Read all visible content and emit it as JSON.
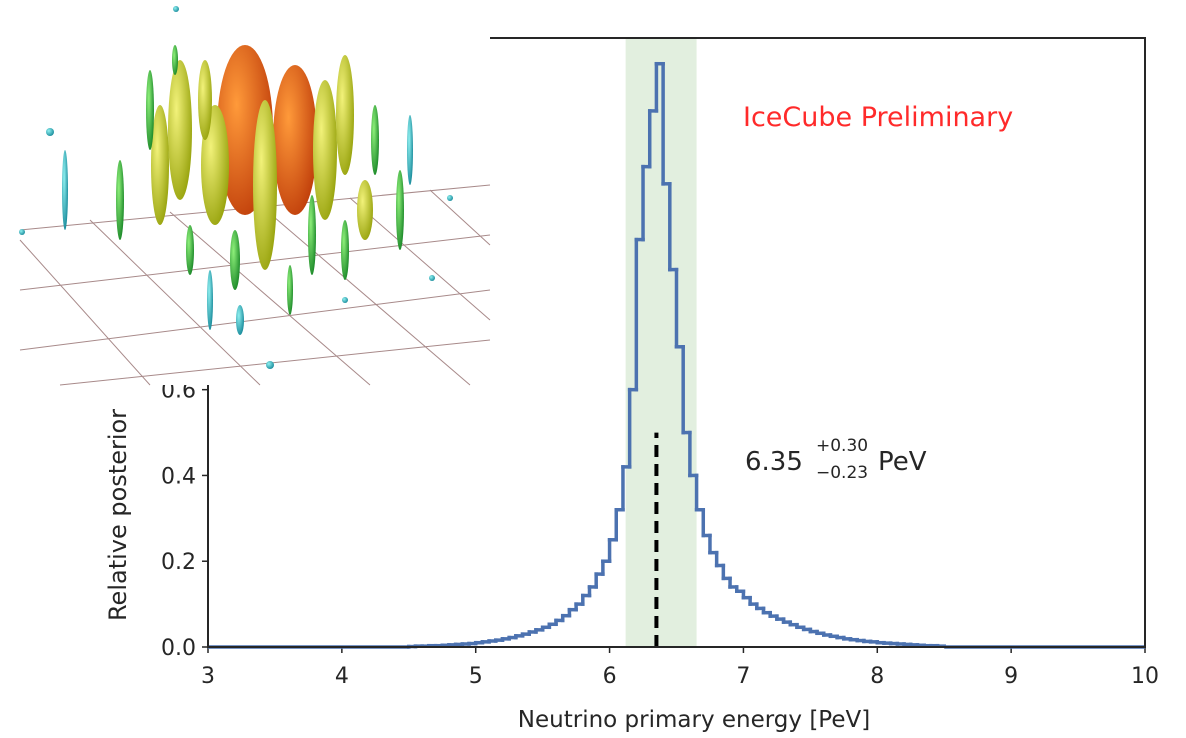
{
  "chart_data": {
    "type": "histogram",
    "title": "IceCube Preliminary",
    "x_label": "Neutrino primary energy [PeV]",
    "y_label": "Relative posterior",
    "color": "#4c72b0",
    "title_color": "#ff2a2a",
    "bins": [
      4.5,
      4.55,
      4.6,
      4.65,
      4.7,
      4.75,
      4.8,
      4.85,
      4.9,
      4.95,
      5.0,
      5.05,
      5.1,
      5.15,
      5.2,
      5.25,
      5.3,
      5.35,
      5.4,
      5.45,
      5.5,
      5.55,
      5.6,
      5.65,
      5.7,
      5.75,
      5.8,
      5.85,
      5.9,
      5.95,
      6.0,
      6.05,
      6.1,
      6.15,
      6.2,
      6.25,
      6.3,
      6.35,
      6.4,
      6.45,
      6.5,
      6.55,
      6.6,
      6.65,
      6.7,
      6.75,
      6.8,
      6.85,
      6.9,
      6.95,
      7.0,
      7.05,
      7.1,
      7.15,
      7.2,
      7.25,
      7.3,
      7.35,
      7.4,
      7.45,
      7.5,
      7.55,
      7.6,
      7.65,
      7.7,
      7.75,
      7.8,
      7.85,
      7.9,
      7.95,
      8.0,
      8.05,
      8.1,
      8.15,
      8.2,
      8.25,
      8.3,
      8.35,
      8.4,
      8.45,
      8.5
    ],
    "values": [
      0.001,
      0.002,
      0.002,
      0.003,
      0.003,
      0.004,
      0.005,
      0.006,
      0.007,
      0.008,
      0.01,
      0.012,
      0.014,
      0.016,
      0.019,
      0.022,
      0.026,
      0.03,
      0.035,
      0.04,
      0.046,
      0.053,
      0.062,
      0.073,
      0.087,
      0.1,
      0.12,
      0.14,
      0.17,
      0.2,
      0.25,
      0.32,
      0.42,
      0.6,
      0.95,
      1.12,
      1.25,
      1.36,
      1.08,
      0.88,
      0.7,
      0.5,
      0.4,
      0.32,
      0.26,
      0.22,
      0.19,
      0.16,
      0.14,
      0.13,
      0.115,
      0.1,
      0.09,
      0.08,
      0.072,
      0.065,
      0.058,
      0.052,
      0.046,
      0.041,
      0.036,
      0.032,
      0.028,
      0.025,
      0.022,
      0.019,
      0.017,
      0.015,
      0.013,
      0.012,
      0.01,
      0.009,
      0.008,
      0.007,
      0.006,
      0.005,
      0.004,
      0.003,
      0.003,
      0.002
    ],
    "interval": [
      6.12,
      6.65
    ],
    "interval_color": "#e2efdf",
    "median": 6.35,
    "median_height": 0.5,
    "annotation": {
      "value": "6.35",
      "upper": "+0.30",
      "lower": "−0.23",
      "unit": "PeV"
    },
    "xlim": [
      3,
      10
    ],
    "xticks": [
      3,
      4,
      5,
      6,
      7,
      8,
      9,
      10
    ],
    "ylim": [
      0,
      1.42
    ],
    "yticks": [
      {
        "value": 0,
        "label": "0.0"
      },
      {
        "value": 0.2,
        "label": "0.2"
      },
      {
        "value": 0.4,
        "label": "0.4"
      },
      {
        "value": 0.6,
        "label": "0.6"
      }
    ]
  }
}
